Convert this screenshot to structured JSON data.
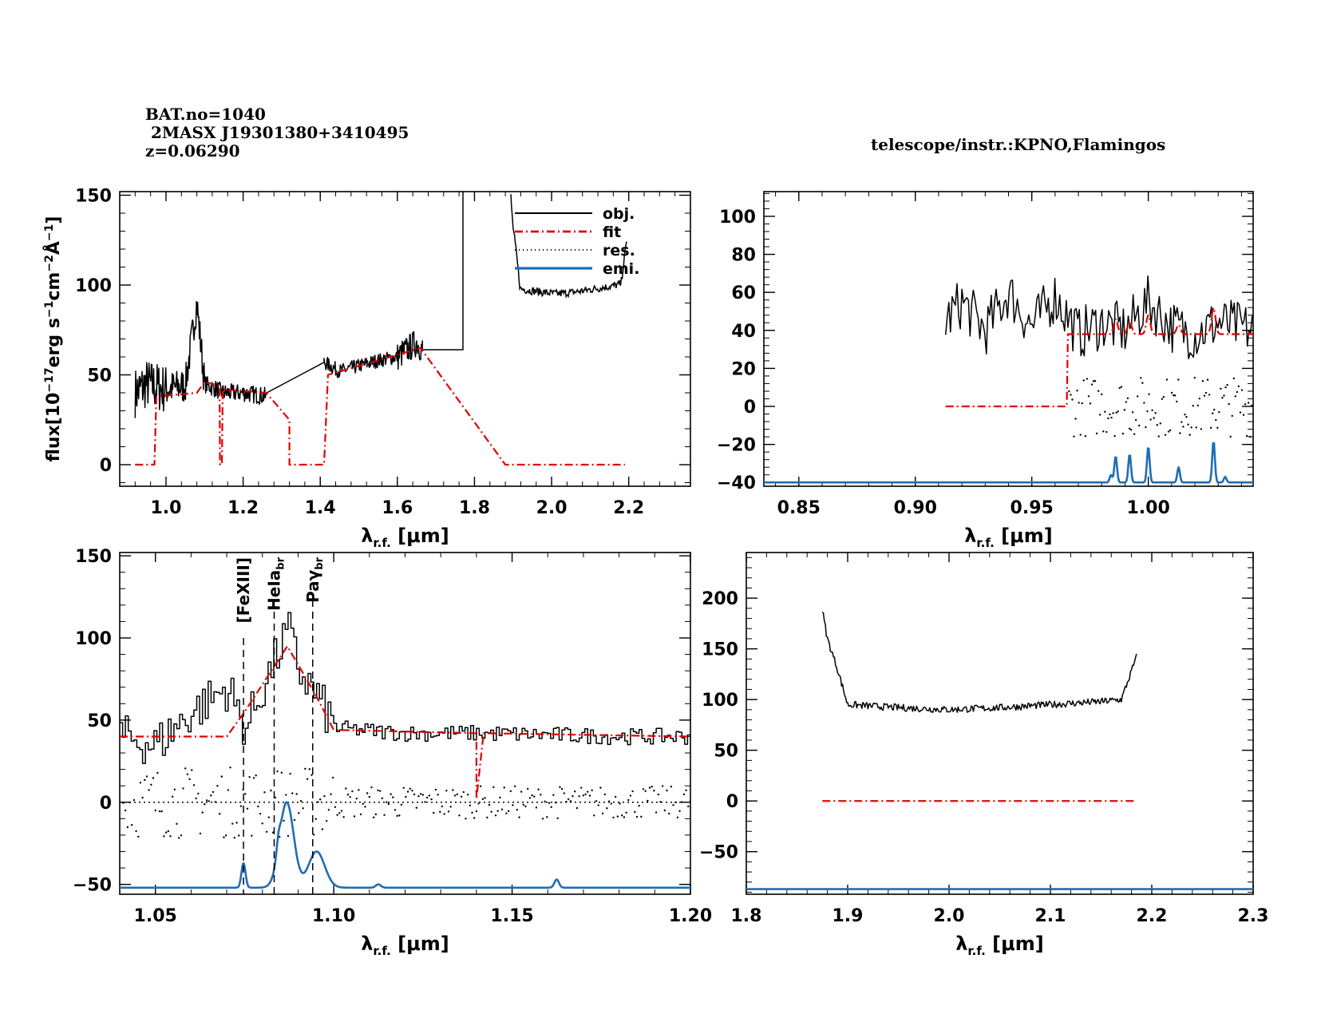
{
  "header": {
    "line1": "BAT.no=1040",
    "line2": " 2MASX J19301380+3410495",
    "line3": "z=0.06290",
    "telescope": "telescope/instr.:KPNO,Flamingos"
  },
  "colors": {
    "obj": "#000000",
    "fit": "#e00000",
    "res": "#000000",
    "emi": "#1f6db5"
  },
  "chart_data": [
    {
      "type": "line",
      "panel": "full-spectrum",
      "xlabel": "λr.f. [μm]",
      "ylabel": "flux[10−17erg s−1cm−2Å−1]",
      "xlim": [
        0.88,
        2.36
      ],
      "ylim": [
        -12,
        152
      ],
      "xticks": [
        1.0,
        1.2,
        1.4,
        1.6,
        1.8,
        2.0,
        2.2
      ],
      "xtick_labels": [
        "1.0",
        "1.2",
        "1.4",
        "1.6",
        "1.8",
        "2.0",
        "2.2"
      ],
      "yticks": [
        0,
        50,
        100,
        150
      ],
      "ytick_labels": [
        "0",
        "50",
        "100",
        "150"
      ],
      "legend": {
        "position": "top-right",
        "entries": [
          "obj.",
          "fit",
          "res.",
          "emi."
        ]
      },
      "series": [
        {
          "name": "obj.",
          "x": [
            0.92,
            0.95,
            1.0,
            1.05,
            1.08,
            1.1,
            1.15,
            1.2,
            1.26,
            1.41,
            1.45,
            1.5,
            1.55,
            1.6,
            1.65,
            1.665,
            1.77,
            1.77
          ],
          "y": [
            40,
            45,
            42,
            44,
            90,
            45,
            40,
            40,
            38,
            57,
            52,
            55,
            58,
            60,
            68,
            64,
            64,
            152
          ]
        },
        {
          "name": "fit",
          "x": [
            0.92,
            0.97,
            0.975,
            1.08,
            1.1,
            1.139,
            1.14,
            1.145,
            1.147,
            1.26,
            1.32,
            1.32,
            1.41,
            1.42,
            1.5,
            1.66,
            1.88,
            2.19
          ],
          "y": [
            0,
            0,
            38,
            40,
            46,
            44,
            0,
            0,
            42,
            40,
            25,
            0,
            0,
            50,
            55,
            65,
            0,
            0
          ]
        }
      ]
    },
    {
      "type": "line",
      "panel": "short-wavelength-zoom",
      "xlabel": "λr.f. [μm]",
      "xlim": [
        0.835,
        1.045
      ],
      "ylim": [
        -42,
        113
      ],
      "xticks": [
        0.85,
        0.9,
        0.95,
        1.0
      ],
      "xtick_labels": [
        "0.85",
        "0.90",
        "0.95",
        "1.00"
      ],
      "yticks": [
        -40,
        -20,
        0,
        20,
        40,
        60,
        80,
        100
      ],
      "ytick_labels": [
        "−40",
        "−20",
        "0",
        "20",
        "40",
        "60",
        "80",
        "100"
      ],
      "series": [
        {
          "name": "obj.",
          "x": [
            0.913,
            0.92,
            0.93,
            0.94,
            0.95,
            0.96,
            0.97,
            0.98,
            0.99,
            1.0,
            1.01,
            1.02,
            1.03,
            1.045
          ],
          "y": [
            45,
            55,
            40,
            60,
            42,
            58,
            38,
            44,
            40,
            55,
            42,
            38,
            44,
            40
          ]
        },
        {
          "name": "fit",
          "x": [
            0.913,
            0.965,
            0.965,
            1.045
          ],
          "y": [
            0,
            0,
            38,
            38
          ]
        },
        {
          "name": "emi.",
          "x": [
            0.835,
            0.984,
            0.986,
            0.992,
            1.0,
            1.013,
            1.028,
            1.033,
            1.045
          ],
          "y": [
            -40,
            -35,
            -25,
            -25,
            -21,
            -32,
            -18,
            -37,
            -40
          ]
        }
      ]
    },
    {
      "type": "line",
      "panel": "pa-gamma-region",
      "xlabel": "λr.f. [μm]",
      "xlim": [
        1.04,
        1.2
      ],
      "ylim": [
        -56,
        152
      ],
      "xticks": [
        1.05,
        1.1,
        1.15,
        1.2
      ],
      "xtick_labels": [
        "1.05",
        "1.10",
        "1.15",
        "1.20"
      ],
      "yticks": [
        -50,
        0,
        50,
        100,
        150
      ],
      "ytick_labels": [
        "−50",
        "0",
        "50",
        "100",
        "150"
      ],
      "annotations": [
        {
          "label": "[FeXIII]",
          "x": 1.0747
        },
        {
          "label": "HeIa",
          "sub": "br",
          "x": 1.0833
        },
        {
          "label": "Paγ",
          "sub": "br",
          "x": 1.0941
        }
      ],
      "series": [
        {
          "name": "obj.",
          "x": [
            1.04,
            1.05,
            1.06,
            1.07,
            1.075,
            1.08,
            1.087,
            1.09,
            1.095,
            1.1,
            1.12,
            1.14,
            1.16,
            1.18,
            1.2
          ],
          "y": [
            40,
            35,
            55,
            70,
            45,
            70,
            105,
            80,
            65,
            45,
            42,
            42,
            41,
            40,
            40
          ]
        },
        {
          "name": "fit",
          "x": [
            1.04,
            1.07,
            1.075,
            1.087,
            1.095,
            1.1,
            1.14,
            1.14,
            1.142,
            1.2
          ],
          "y": [
            40,
            40,
            55,
            95,
            65,
            44,
            42,
            2,
            42,
            40
          ]
        },
        {
          "name": "emi.",
          "x": [
            1.04,
            1.075,
            1.084,
            1.087,
            1.095,
            1.113,
            1.163,
            1.2
          ],
          "y": [
            -52,
            -37,
            -45,
            0,
            -30,
            -51,
            -48,
            -52
          ]
        }
      ]
    },
    {
      "type": "line",
      "panel": "k-band",
      "xlabel": "λr.f. [μm]",
      "xlim": [
        1.8,
        2.3
      ],
      "ylim": [
        -92,
        245
      ],
      "xticks": [
        1.8,
        1.9,
        2.0,
        2.1,
        2.2,
        2.3
      ],
      "xtick_labels": [
        "1.8",
        "1.9",
        "2.0",
        "2.1",
        "2.2",
        "2.3"
      ],
      "yticks": [
        -50,
        0,
        50,
        100,
        150,
        200
      ],
      "ytick_labels": [
        "−50",
        "0",
        "50",
        "100",
        "150",
        "200"
      ],
      "series": [
        {
          "name": "obj.",
          "x": [
            1.875,
            1.88,
            1.89,
            1.9,
            1.95,
            2.0,
            2.05,
            2.1,
            2.15,
            2.17,
            2.185
          ],
          "y": [
            188,
            160,
            130,
            95,
            92,
            90,
            92,
            95,
            98,
            100,
            142
          ]
        },
        {
          "name": "fit",
          "x": [
            1.875,
            2.185
          ],
          "y": [
            0,
            0
          ]
        },
        {
          "name": "emi.",
          "x": [
            1.8,
            2.3
          ],
          "y": [
            -87,
            -87
          ]
        }
      ]
    }
  ]
}
